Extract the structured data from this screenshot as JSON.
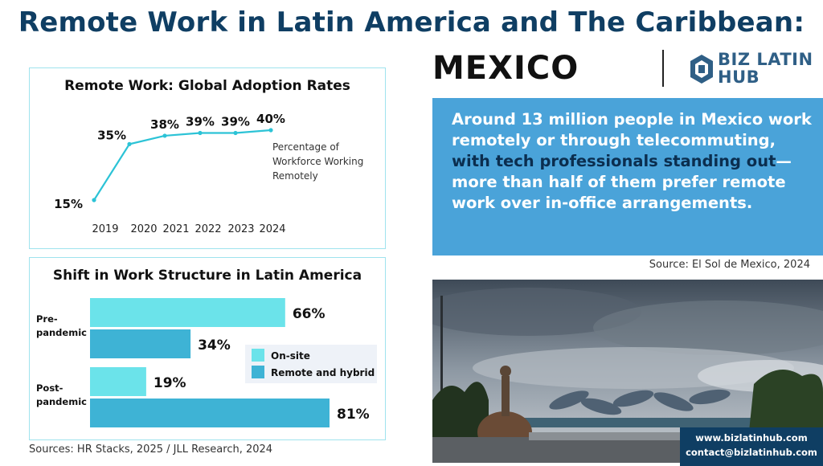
{
  "header": {
    "title": "Remote Work in Latin America and The Caribbean:",
    "country": "MEXICO",
    "logo_line1": "BIZ LATIN",
    "logo_line2": "HUB"
  },
  "highlight": {
    "text_part1": "Around 13 million people in Mexico work remotely or through telecommuting,",
    "text_highlight": " with tech professionals standing out",
    "text_part2": "—more than half of them prefer remote work over in-office arrangements.",
    "source": "Source:  El Sol de Mexico, 2024"
  },
  "contact": {
    "website": "www.bizlatinhub.com",
    "email": "contact@bizlatinhub.com"
  },
  "sources": "Sources: HR Stacks, 2025 /  JLL Research, 2024",
  "colors": {
    "title": "#0f3e63",
    "accent_light": "#6be3ea",
    "accent_dark": "#3eb3d5",
    "blue_box": "#4aa3d9",
    "line": "#2cc3d6"
  },
  "chart_data": [
    {
      "type": "line",
      "title": "Remote Work: Global Adoption Rates",
      "x": [
        "2019",
        "2020",
        "2021",
        "2022",
        "2023",
        "2024"
      ],
      "series": [
        {
          "values": [
            15,
            35,
            38,
            39,
            39,
            40
          ]
        }
      ],
      "data_labels": [
        "15%",
        "35%",
        "38%",
        "39%",
        "39%",
        "40%"
      ],
      "annotation": [
        "Percentage of",
        "Workforce Working",
        "Remotely"
      ],
      "ylim": [
        15,
        40
      ]
    },
    {
      "type": "bar",
      "orientation": "horizontal",
      "title": "Shift in Work Structure in Latin America",
      "groups": [
        {
          "label_lines": [
            "Pre-",
            "pandemic"
          ],
          "values": [
            66,
            34
          ]
        },
        {
          "label_lines": [
            "Post-",
            "pandemic"
          ],
          "values": [
            19,
            81
          ]
        }
      ],
      "series": [
        {
          "name": "On-site"
        },
        {
          "name": "Remote and hybrid"
        }
      ],
      "data_labels": [
        [
          "66%",
          "34%"
        ],
        [
          "19%",
          "81%"
        ]
      ],
      "xlim": [
        0,
        81
      ],
      "legend": "right"
    }
  ]
}
